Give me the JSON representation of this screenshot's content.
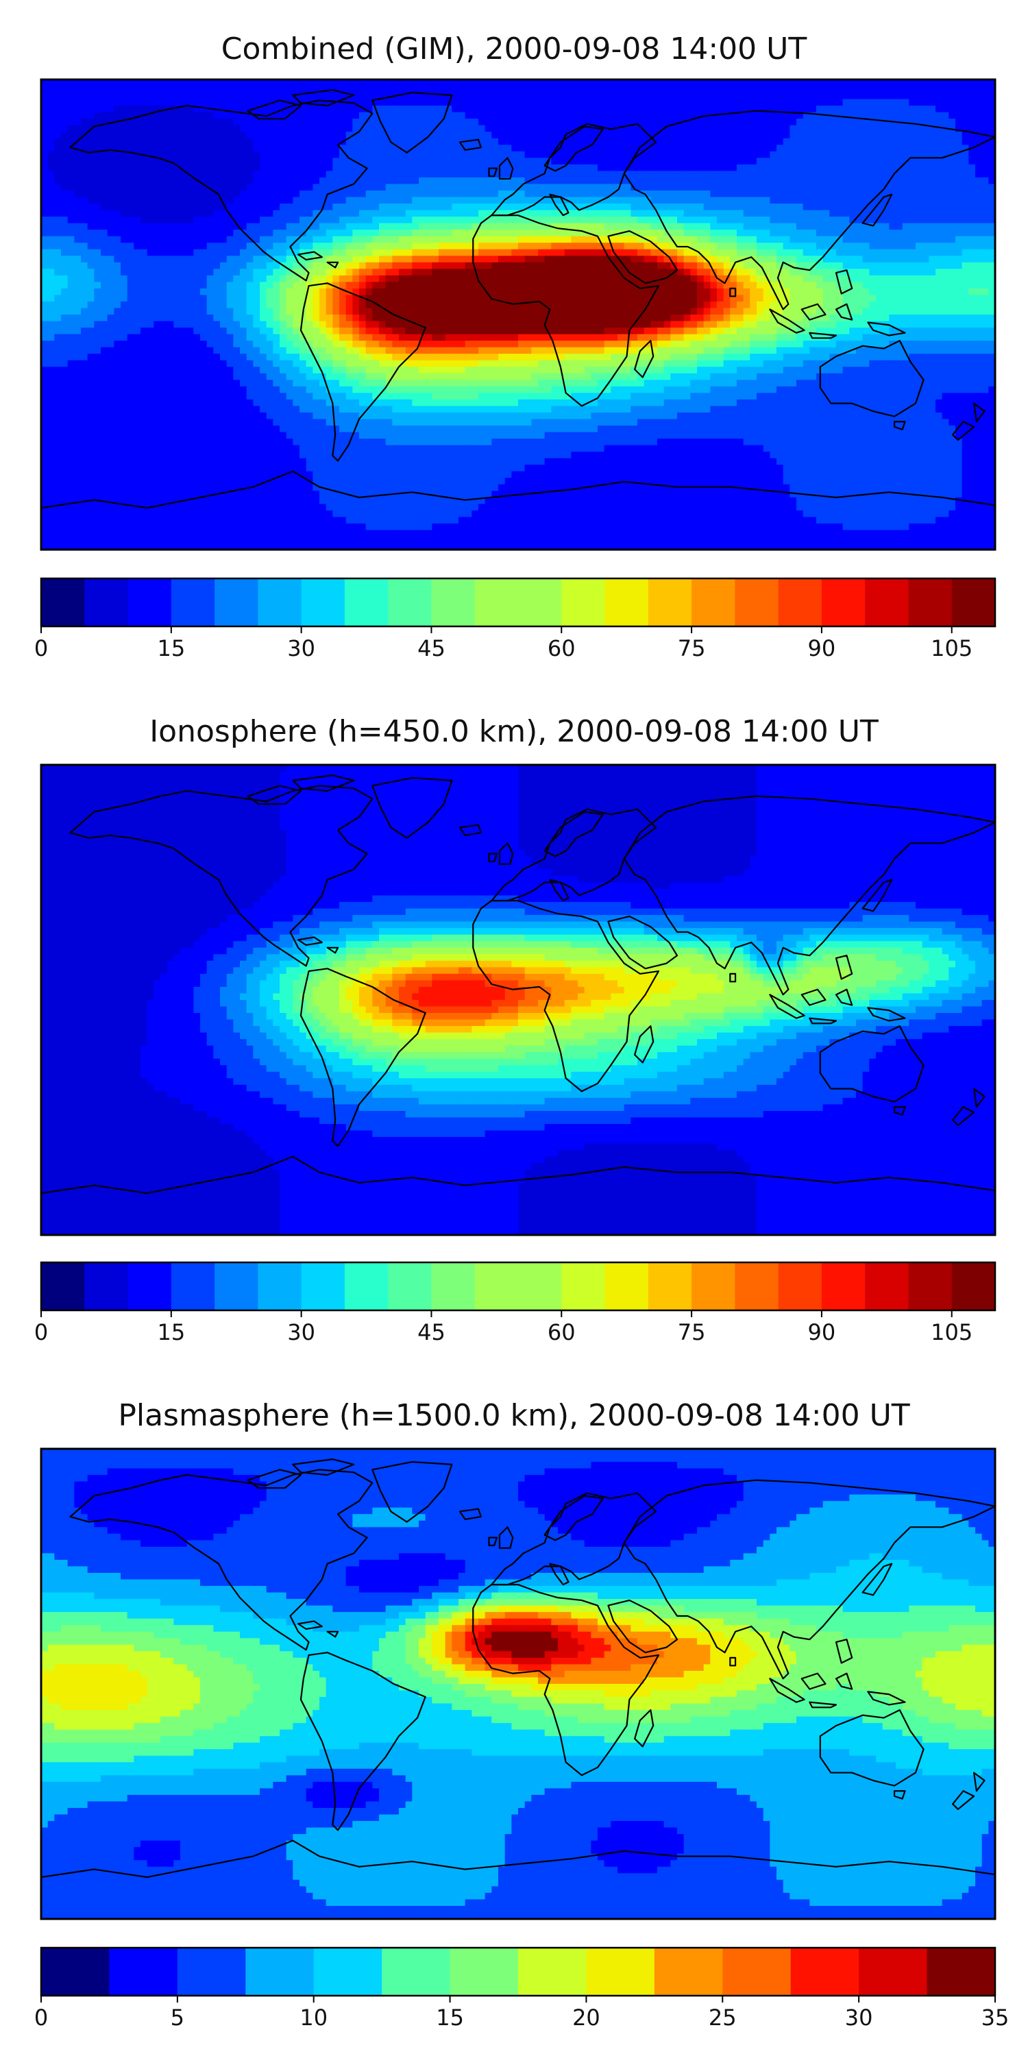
{
  "figure": {
    "panels": [
      {
        "title": "Combined (GIM), 2000-09-08 14:00 UT",
        "colorbar": {
          "min": 0,
          "max": 110,
          "levels": [
            0,
            5,
            10,
            15,
            20,
            25,
            30,
            35,
            40,
            45,
            50,
            55,
            60,
            65,
            70,
            75,
            80,
            85,
            90,
            95,
            100,
            105,
            110
          ],
          "tick_labels": [
            "0",
            "15",
            "30",
            "45",
            "60",
            "75",
            "90",
            "105"
          ],
          "tick_values": [
            0,
            15,
            30,
            45,
            60,
            75,
            90,
            105
          ]
        },
        "field": {
          "base": 14,
          "features": [
            {
              "lon": 0,
              "lat": 8,
              "amp": 88,
              "slon": 55,
              "slat": 14
            },
            {
              "lon": 35,
              "lat": 10,
              "amp": 50,
              "slon": 25,
              "slat": 12
            },
            {
              "lon": -45,
              "lat": 0,
              "amp": 45,
              "slon": 28,
              "slat": 16
            },
            {
              "lon": 90,
              "lat": 5,
              "amp": 30,
              "slon": 55,
              "slat": 14
            },
            {
              "lon": -5,
              "lat": -22,
              "amp": 25,
              "slon": 55,
              "slat": 15
            },
            {
              "lon": -180,
              "lat": 12,
              "amp": 18,
              "slon": 22,
              "slat": 15
            },
            {
              "lon": 180,
              "lat": 12,
              "amp": 18,
              "slon": 22,
              "slat": 15
            },
            {
              "lon": 20,
              "lat": 35,
              "amp": 14,
              "slon": 55,
              "slat": 12
            },
            {
              "lon": -120,
              "lat": -10,
              "amp": -8,
              "slon": 30,
              "slat": 25
            },
            {
              "lon": -140,
              "lat": 55,
              "amp": -6,
              "slon": 40,
              "slat": 20
            }
          ]
        }
      },
      {
        "title": "Ionosphere  (h=450.0 km), 2000-09-08 14:00 UT",
        "colorbar": {
          "min": 0,
          "max": 110,
          "levels": [
            0,
            5,
            10,
            15,
            20,
            25,
            30,
            35,
            40,
            45,
            50,
            55,
            60,
            65,
            70,
            75,
            80,
            85,
            90,
            95,
            100,
            105,
            110
          ],
          "tick_labels": [
            "0",
            "15",
            "30",
            "45",
            "60",
            "75",
            "90",
            "105"
          ],
          "tick_values": [
            0,
            15,
            30,
            45,
            60,
            75,
            90,
            105
          ]
        },
        "field": {
          "base": 10,
          "features": [
            {
              "lon": 0,
              "lat": 5,
              "amp": 58,
              "slon": 60,
              "slat": 15
            },
            {
              "lon": -20,
              "lat": 0,
              "amp": 12,
              "slon": 25,
              "slat": 10
            },
            {
              "lon": -45,
              "lat": -2,
              "amp": 28,
              "slon": 30,
              "slat": 16
            },
            {
              "lon": 110,
              "lat": 8,
              "amp": 32,
              "slon": 45,
              "slat": 12
            },
            {
              "lon": 150,
              "lat": 18,
              "amp": 14,
              "slon": 25,
              "slat": 10
            },
            {
              "lon": 10,
              "lat": -28,
              "amp": 20,
              "slon": 70,
              "slat": 13
            },
            {
              "lon": 95,
              "lat": 15,
              "amp": -22,
              "slon": 8,
              "slat": 6
            },
            {
              "lon": -140,
              "lat": 8,
              "amp": -7,
              "slon": 30,
              "slat": 25
            }
          ]
        }
      },
      {
        "title": "Plasmasphere (h=1500.0 km), 2000-09-08 14:00 UT",
        "colorbar": {
          "min": 0,
          "max": 35,
          "levels": [
            0,
            2.5,
            5,
            7.5,
            10,
            12.5,
            15,
            17.5,
            20,
            22.5,
            25,
            27.5,
            30,
            32.5,
            35
          ],
          "tick_labels": [
            "0",
            "5",
            "10",
            "15",
            "20",
            "25",
            "30",
            "35"
          ],
          "tick_values": [
            0,
            5,
            10,
            15,
            20,
            25,
            30,
            35
          ]
        },
        "field": {
          "base": 7,
          "features": [
            {
              "lon": -5,
              "lat": 18,
              "amp": 18,
              "slon": 22,
              "slat": 10
            },
            {
              "lon": 40,
              "lat": 15,
              "amp": 9,
              "slon": 45,
              "slat": 12
            },
            {
              "lon": 30,
              "lat": 0,
              "amp": 7,
              "slon": 80,
              "slat": 20
            },
            {
              "lon": -180,
              "lat": 0,
              "amp": 10,
              "slon": 35,
              "slat": 20
            },
            {
              "lon": 180,
              "lat": 0,
              "amp": 10,
              "slon": 35,
              "slat": 20
            },
            {
              "lon": -120,
              "lat": -5,
              "amp": 5,
              "slon": 60,
              "slat": 25
            },
            {
              "lon": 120,
              "lat": 10,
              "amp": 4,
              "slon": 50,
              "slat": 20
            },
            {
              "lon": -40,
              "lat": 40,
              "amp": -6,
              "slon": 30,
              "slat": 12
            },
            {
              "lon": -65,
              "lat": -42,
              "amp": -6,
              "slon": 18,
              "slat": 8
            },
            {
              "lon": 0,
              "lat": 75,
              "amp": -2,
              "slon": 180,
              "slat": 10
            }
          ]
        }
      }
    ],
    "colormap": [
      "#00007f",
      "#0000d9",
      "#0000ff",
      "#0040ff",
      "#0080ff",
      "#00b0ff",
      "#00d4ff",
      "#29ffcd",
      "#53ffa3",
      "#7dff7a",
      "#a3ff53",
      "#cdff29",
      "#f0f000",
      "#ffc400",
      "#ff9400",
      "#ff6800",
      "#ff3d00",
      "#ff1300",
      "#d90000",
      "#a80000",
      "#7f0000"
    ],
    "coastline_color": "#000000"
  }
}
